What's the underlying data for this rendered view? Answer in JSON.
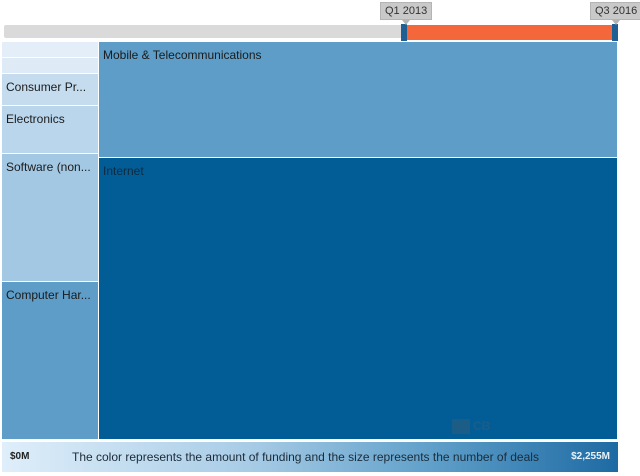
{
  "time_range": {
    "start_label": "Q1 2013",
    "end_label": "Q3 2016"
  },
  "chart_data": {
    "type": "treemap",
    "title": "",
    "cells": [
      {
        "label": "",
        "color": "#e3eef8"
      },
      {
        "label": "",
        "color": "#deebf6"
      },
      {
        "label": "Consumer Pr...",
        "color": "#c4dcee"
      },
      {
        "label": "Electronics",
        "color": "#bad6ec"
      },
      {
        "label": "Software (non...",
        "color": "#a3c8e4"
      },
      {
        "label": "Computer Har...",
        "color": "#5e9dc8"
      },
      {
        "label": "Mobile & Telecommunications",
        "color": "#5d9dc7"
      },
      {
        "label": "Internet",
        "color": "#025d96"
      }
    ],
    "color_scale": {
      "min_label": "$0M",
      "max_label": "$2,255M",
      "description": "The color represents the amount of funding and the size represents the number of deals"
    }
  },
  "watermark": {
    "text": "CB"
  }
}
